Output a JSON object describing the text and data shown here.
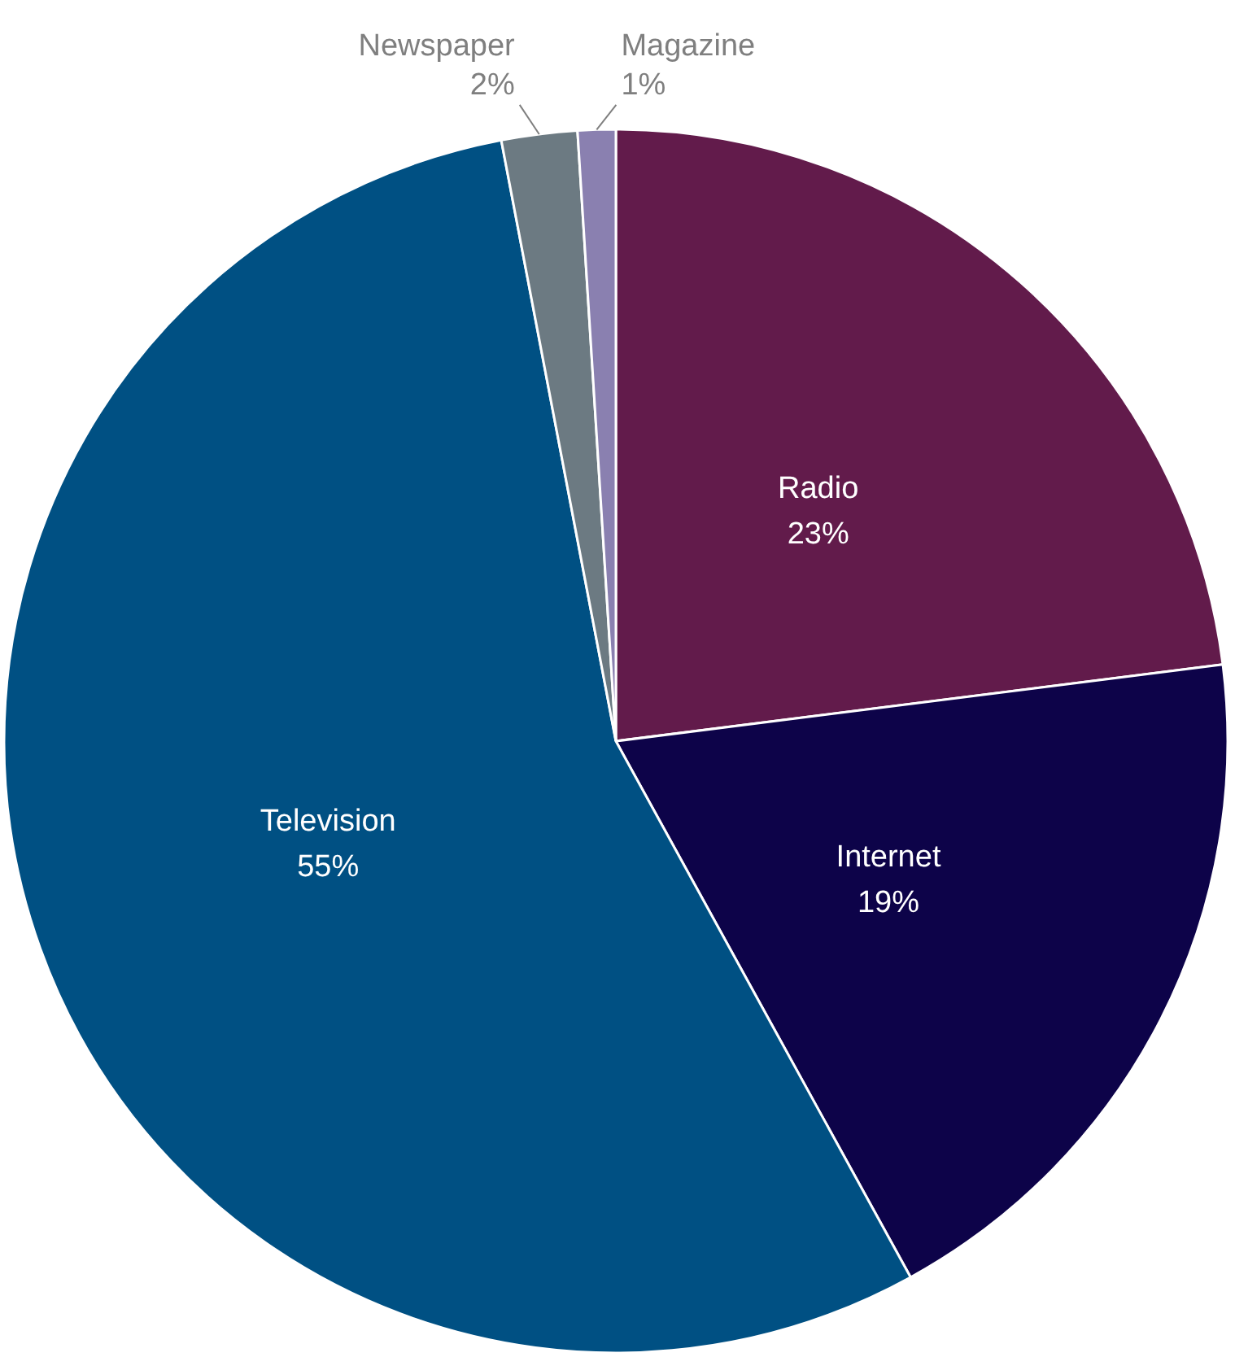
{
  "chart_data": {
    "type": "pie",
    "categories": [
      "Radio",
      "Internet",
      "Television",
      "Newspaper",
      "Magazine"
    ],
    "values": [
      23,
      19,
      55,
      2,
      1
    ],
    "value_labels": [
      "23%",
      "19%",
      "55%",
      "2%",
      "1%"
    ],
    "colors": [
      "#621b4b",
      "#0d0349",
      "#005083",
      "#6c7a82",
      "#8a80b0"
    ]
  }
}
